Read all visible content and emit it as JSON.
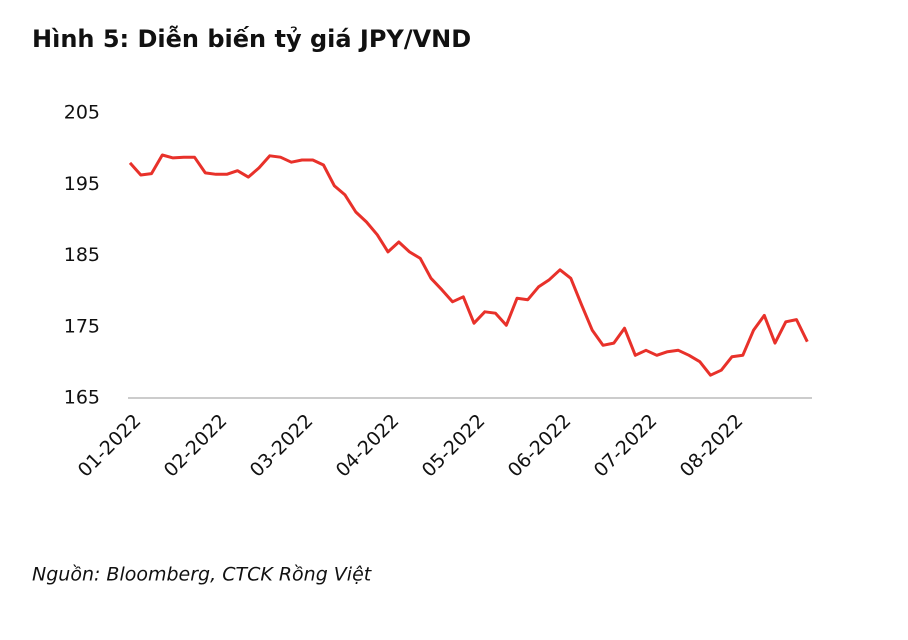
{
  "chart_data": {
    "type": "line",
    "title": "Hình 5: Diễn biến tỷ giá JPY/VND",
    "source": "Nguồn: Bloomberg, CTCK Rồng Việt",
    "categories": [
      "01-2022",
      null,
      null,
      null,
      null,
      null,
      null,
      null,
      "02-2022",
      null,
      null,
      null,
      null,
      null,
      null,
      null,
      "03-2022",
      null,
      null,
      null,
      null,
      null,
      null,
      null,
      "04-2022",
      null,
      null,
      null,
      null,
      null,
      null,
      null,
      "05-2022",
      null,
      null,
      null,
      null,
      null,
      null,
      null,
      "06-2022",
      null,
      null,
      null,
      null,
      null,
      null,
      null,
      "07-2022",
      null,
      null,
      null,
      null,
      null,
      null,
      null,
      "08-2022",
      null,
      null,
      null,
      null,
      null,
      null,
      null
    ],
    "series": [
      {
        "name": "JPY/VND",
        "color": "#e8312a",
        "values": [
          198.0,
          196.3,
          196.5,
          199.1,
          198.7,
          198.8,
          198.8,
          196.6,
          196.4,
          196.4,
          196.9,
          196.0,
          197.3,
          199.0,
          198.8,
          198.1,
          198.4,
          198.4,
          197.7,
          194.8,
          193.5,
          191.1,
          189.7,
          187.9,
          185.5,
          186.9,
          185.5,
          184.6,
          181.8,
          180.2,
          178.5,
          179.2,
          175.5,
          177.1,
          176.9,
          175.2,
          179.0,
          178.8,
          180.6,
          181.6,
          183.0,
          181.8,
          178.1,
          174.5,
          172.4,
          172.7,
          174.8,
          171.0,
          171.7,
          171.0,
          171.5,
          171.7,
          171.0,
          170.1,
          168.2,
          168.9,
          170.8,
          171.0,
          174.5,
          176.6,
          172.7,
          175.7,
          176.0,
          172.9
        ]
      }
    ],
    "ylim": [
      165,
      205
    ],
    "yticks": [
      165,
      175,
      185,
      195,
      205
    ],
    "grid": false
  }
}
